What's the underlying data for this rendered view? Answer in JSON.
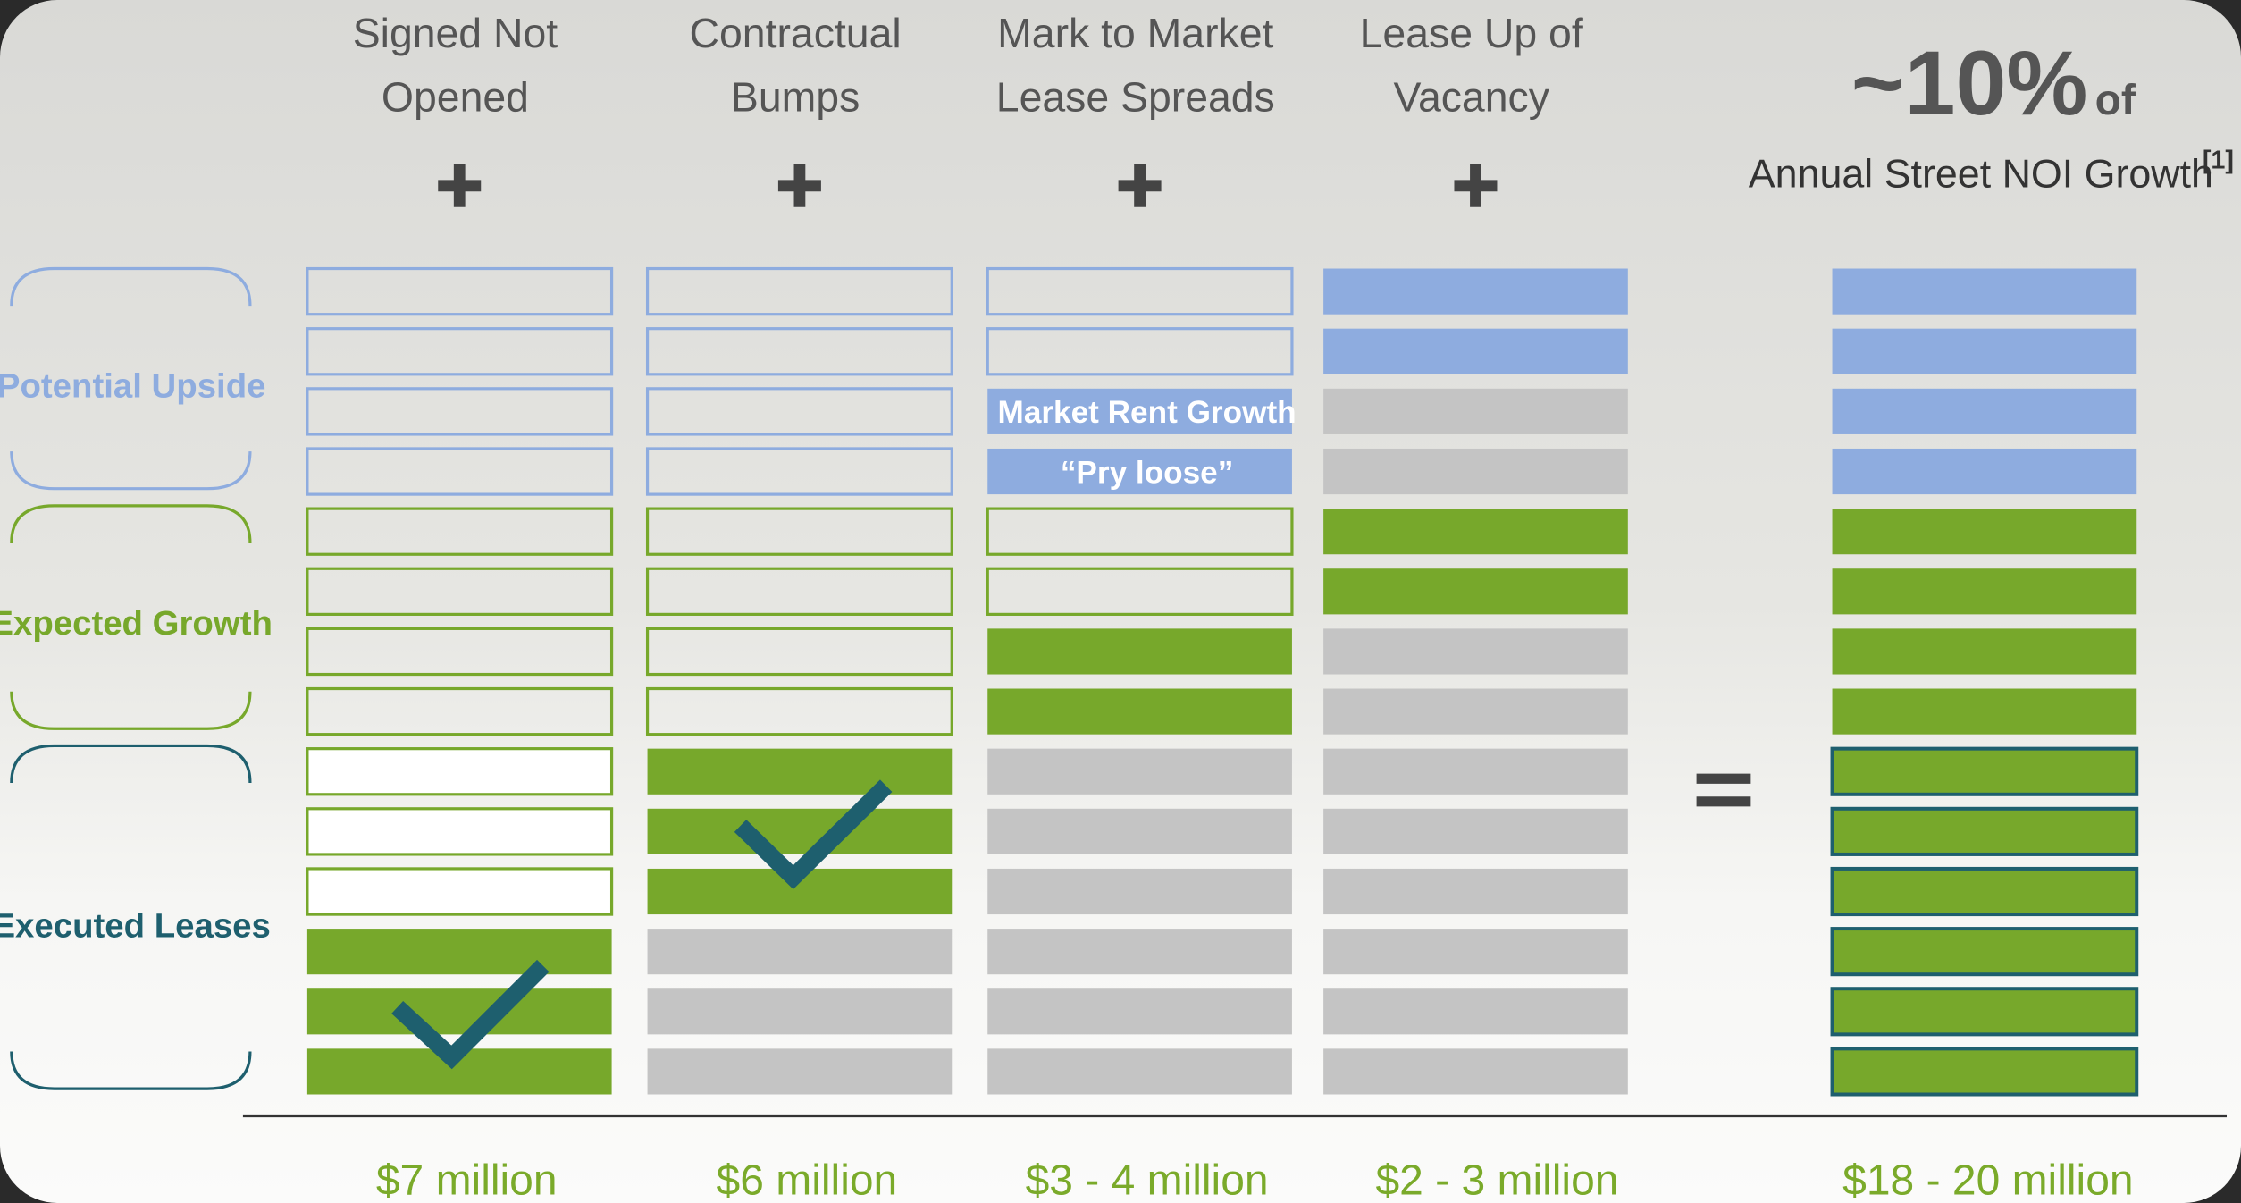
{
  "columns": [
    {
      "title_lines": [
        "Signed Not",
        "Opened"
      ],
      "total": "$7 million"
    },
    {
      "title_lines": [
        "Contractual",
        "Bumps"
      ],
      "total": "$6 million"
    },
    {
      "title_lines": [
        "Mark to Market",
        "Lease Spreads"
      ],
      "total": "$3 - 4 million",
      "bar_labels": [
        "Market Rent Growth",
        "“Pry loose”"
      ]
    },
    {
      "title_lines": [
        "Lease Up of",
        "Vacancy"
      ],
      "total": "$2 - 3 million"
    }
  ],
  "result": {
    "headline": "~10%",
    "headline_suffix": "of",
    "subtitle": "Annual Street NOI Growth",
    "footnote": "[1]",
    "total": "$18 - 20 million"
  },
  "legend": [
    "Potential Upside",
    "Expected Growth",
    "Executed Leases"
  ]
}
